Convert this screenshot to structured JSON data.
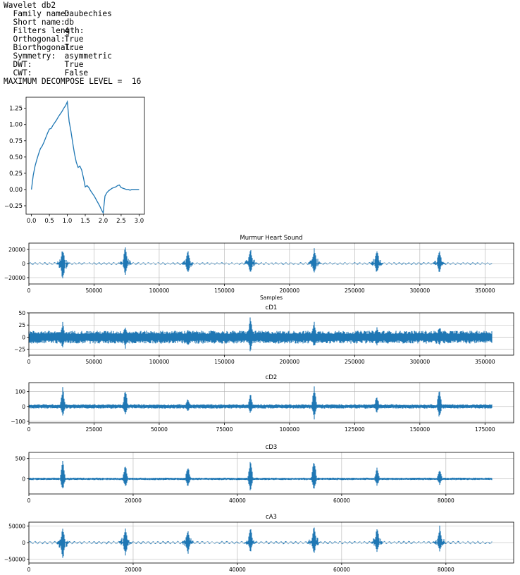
{
  "output": {
    "header": "Wavelet db2",
    "rows": [
      {
        "key": "Family name:",
        "value": "Daubechies"
      },
      {
        "key": "Short name:",
        "value": "db"
      },
      {
        "key": "Filters length:",
        "value": "4"
      },
      {
        "key": "Orthogonal:",
        "value": "True"
      },
      {
        "key": "Biorthogonal:",
        "value": "True"
      },
      {
        "key": "Symmetry:",
        "value": "asymmetric"
      },
      {
        "key": "DWT:",
        "value": "True"
      },
      {
        "key": "CWT:",
        "value": "False"
      }
    ],
    "max_level_label": "MAXIMUM DECOMPOSE LEVEL = ",
    "max_level_value": "16"
  },
  "colors": {
    "line": "#1f77b4",
    "grid": "#b0b0b0",
    "axis": "#000000"
  },
  "chart_data": [
    {
      "id": "wavelet",
      "type": "line",
      "title": "",
      "xlabel": "",
      "ylabel": "",
      "grid": false,
      "xlim": [
        -0.15,
        3.15
      ],
      "ylim": [
        -0.38,
        1.42
      ],
      "xticks": [
        0,
        0.5,
        1,
        1.5,
        2,
        2.5,
        3
      ],
      "xtick_labels": [
        "0.0",
        "0.5",
        "1.0",
        "1.5",
        "2.0",
        "2.5",
        "3.0"
      ],
      "yticks": [
        -0.25,
        0,
        0.25,
        0.5,
        0.75,
        1.0,
        1.25
      ],
      "ytick_labels": [
        "−0.25",
        "0.00",
        "0.25",
        "0.50",
        "0.75",
        "1.00",
        "1.25"
      ],
      "x": [
        0,
        0.05,
        0.1,
        0.15,
        0.2,
        0.25,
        0.3,
        0.35,
        0.4,
        0.45,
        0.5,
        0.55,
        0.6,
        0.65,
        0.7,
        0.75,
        0.8,
        0.85,
        0.9,
        0.95,
        1.0,
        1.05,
        1.1,
        1.15,
        1.2,
        1.25,
        1.3,
        1.35,
        1.4,
        1.45,
        1.5,
        1.55,
        1.6,
        1.65,
        1.7,
        1.75,
        1.8,
        1.85,
        1.9,
        1.95,
        2.0,
        2.05,
        2.1,
        2.15,
        2.2,
        2.25,
        2.3,
        2.35,
        2.4,
        2.45,
        2.5,
        2.55,
        2.6,
        2.65,
        2.7,
        2.75,
        2.8,
        2.85,
        2.9,
        2.95,
        3.0
      ],
      "y": [
        0,
        0.22,
        0.36,
        0.46,
        0.55,
        0.63,
        0.67,
        0.73,
        0.8,
        0.87,
        0.93,
        0.94,
        0.99,
        1.03,
        1.07,
        1.12,
        1.16,
        1.2,
        1.25,
        1.29,
        1.35,
        1.05,
        0.9,
        0.72,
        0.55,
        0.42,
        0.34,
        0.36,
        0.3,
        0.18,
        0.04,
        0.06,
        0.03,
        -0.02,
        -0.06,
        -0.1,
        -0.15,
        -0.2,
        -0.25,
        -0.31,
        -0.36,
        -0.1,
        -0.05,
        -0.02,
        0.0,
        0.02,
        0.03,
        0.04,
        0.06,
        0.07,
        0.03,
        0.02,
        0.01,
        0.0,
        0.0,
        -0.01,
        0.0,
        0.0,
        0.0,
        0.0,
        0.0
      ]
    },
    {
      "id": "signal",
      "type": "line",
      "title": "Murmur Heart Sound",
      "xlabel": "Samples",
      "ylabel": "",
      "grid": true,
      "xlim": [
        0,
        372000
      ],
      "ylim": [
        -29000,
        29000
      ],
      "xticks": [
        0,
        50000,
        100000,
        150000,
        200000,
        250000,
        300000,
        350000
      ],
      "xtick_labels": [
        "0",
        "50000",
        "100000",
        "150000",
        "200000",
        "250000",
        "300000",
        "350000"
      ],
      "yticks": [
        -20000,
        0,
        20000
      ],
      "ytick_labels": [
        "−20000",
        "0",
        "20000"
      ],
      "n": 355000,
      "noise": 1800,
      "peaks": [
        {
          "x": 26000,
          "hi": 24000,
          "lo": -26000
        },
        {
          "x": 74000,
          "hi": 26000,
          "lo": -18000
        },
        {
          "x": 122000,
          "hi": 22000,
          "lo": -17000
        },
        {
          "x": 170000,
          "hi": 24000,
          "lo": -15000
        },
        {
          "x": 219000,
          "hi": 26000,
          "lo": -16000
        },
        {
          "x": 267000,
          "hi": 25000,
          "lo": -15000
        },
        {
          "x": 315000,
          "hi": 25000,
          "lo": -14000
        }
      ]
    },
    {
      "id": "cD1",
      "type": "line",
      "title": "cD1",
      "xlabel": "",
      "ylabel": "",
      "grid": true,
      "xlim": [
        0,
        372000
      ],
      "ylim": [
        -37,
        50
      ],
      "xticks": [
        0,
        50000,
        100000,
        150000,
        200000,
        250000,
        300000,
        350000
      ],
      "xtick_labels": [
        "0",
        "50000",
        "100000",
        "150000",
        "200000",
        "250000",
        "300000",
        "350000"
      ],
      "yticks": [
        -25,
        0,
        25,
        50
      ],
      "ytick_labels": [
        "−25",
        "0",
        "25",
        "50"
      ],
      "n": 355000,
      "noise": 11,
      "peaks": [
        {
          "x": 26000,
          "hi": 34,
          "lo": -27
        },
        {
          "x": 74000,
          "hi": 28,
          "lo": -25
        },
        {
          "x": 122000,
          "hi": 20,
          "lo": -22
        },
        {
          "x": 170000,
          "hi": 48,
          "lo": -35
        },
        {
          "x": 219000,
          "hi": 36,
          "lo": -24
        },
        {
          "x": 267000,
          "hi": 24,
          "lo": -20
        },
        {
          "x": 315000,
          "hi": 28,
          "lo": -21
        }
      ]
    },
    {
      "id": "cD2",
      "type": "line",
      "title": "cD2",
      "xlabel": "",
      "ylabel": "",
      "grid": true,
      "xlim": [
        0,
        186000
      ],
      "ylim": [
        -110,
        160
      ],
      "xticks": [
        0,
        25000,
        50000,
        75000,
        100000,
        125000,
        150000,
        175000
      ],
      "xtick_labels": [
        "0",
        "25000",
        "50000",
        "75000",
        "100000",
        "125000",
        "150000",
        "175000"
      ],
      "yticks": [
        -100,
        0,
        100
      ],
      "ytick_labels": [
        "−100",
        "0",
        "100"
      ],
      "n": 177500,
      "noise": 12,
      "peaks": [
        {
          "x": 13000,
          "hi": 140,
          "lo": -70
        },
        {
          "x": 37000,
          "hi": 130,
          "lo": -60
        },
        {
          "x": 61000,
          "hi": 60,
          "lo": -40
        },
        {
          "x": 85000,
          "hi": 90,
          "lo": -50
        },
        {
          "x": 109500,
          "hi": 150,
          "lo": -90
        },
        {
          "x": 133500,
          "hi": 80,
          "lo": -45
        },
        {
          "x": 157500,
          "hi": 140,
          "lo": -80
        }
      ]
    },
    {
      "id": "cD3",
      "type": "line",
      "title": "cD3",
      "xlabel": "",
      "ylabel": "",
      "grid": true,
      "xlim": [
        0,
        93000
      ],
      "ylim": [
        -370,
        650
      ],
      "xticks": [
        0,
        20000,
        40000,
        60000,
        80000
      ],
      "xtick_labels": [
        "0",
        "20000",
        "40000",
        "60000",
        "80000"
      ],
      "yticks": [
        0,
        500
      ],
      "ytick_labels": [
        "0",
        "500"
      ],
      "n": 88750,
      "noise": 25,
      "peaks": [
        {
          "x": 6500,
          "hi": 470,
          "lo": -290
        },
        {
          "x": 18500,
          "hi": 380,
          "lo": -220
        },
        {
          "x": 30500,
          "hi": 370,
          "lo": -200
        },
        {
          "x": 42500,
          "hi": 500,
          "lo": -330
        },
        {
          "x": 54700,
          "hi": 580,
          "lo": -330
        },
        {
          "x": 66800,
          "hi": 330,
          "lo": -180
        },
        {
          "x": 78800,
          "hi": 280,
          "lo": -160
        }
      ]
    },
    {
      "id": "cA3",
      "type": "line",
      "title": "cA3",
      "xlabel": "",
      "ylabel": "",
      "grid": true,
      "xlim": [
        0,
        93000
      ],
      "ylim": [
        -62000,
        62000
      ],
      "xticks": [
        0,
        20000,
        40000,
        60000,
        80000
      ],
      "xtick_labels": [
        "0",
        "20000",
        "40000",
        "60000",
        "80000"
      ],
      "yticks": [
        -50000,
        0,
        50000
      ],
      "ytick_labels": [
        "−50000",
        "0",
        "50000"
      ],
      "n": 88750,
      "noise": 4500,
      "peaks": [
        {
          "x": 6500,
          "hi": 50000,
          "lo": -57000
        },
        {
          "x": 18500,
          "hi": 55000,
          "lo": -45000
        },
        {
          "x": 30500,
          "hi": 50000,
          "lo": -38000
        },
        {
          "x": 42500,
          "hi": 52000,
          "lo": -32000
        },
        {
          "x": 54700,
          "hi": 55000,
          "lo": -36000
        },
        {
          "x": 66800,
          "hi": 50000,
          "lo": -30000
        },
        {
          "x": 78800,
          "hi": 53000,
          "lo": -30000
        }
      ]
    }
  ]
}
